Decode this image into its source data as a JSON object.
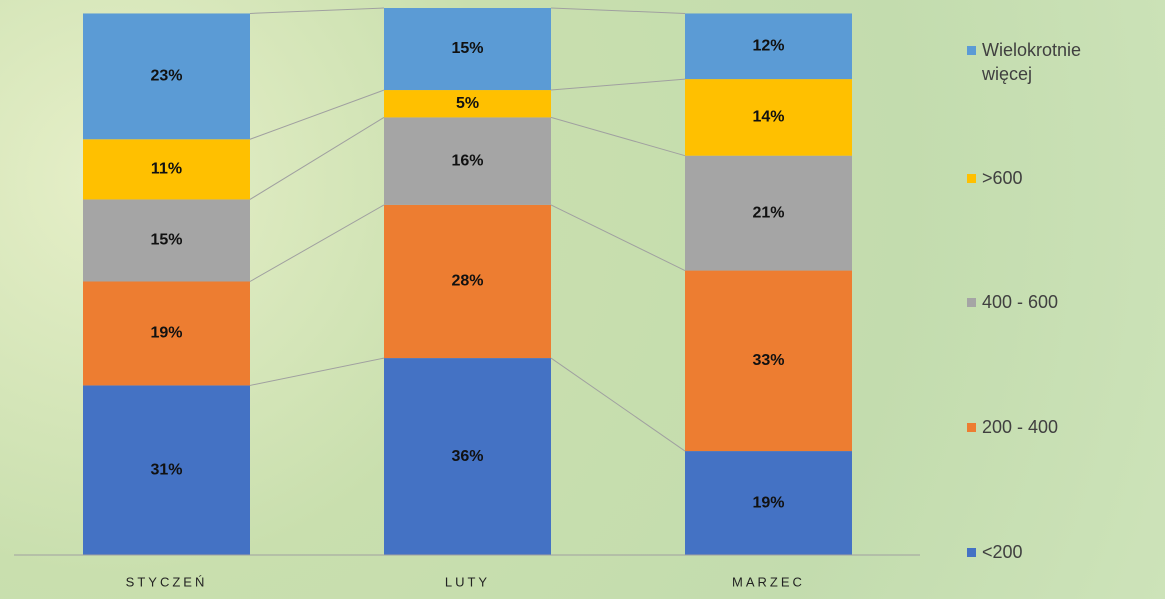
{
  "chart_data": {
    "type": "bar",
    "stacked": true,
    "categories": [
      "STYCZEŃ",
      "LUTY",
      "MARZEC"
    ],
    "series": [
      {
        "name": "<200",
        "color": "#4472c4",
        "values": [
          31,
          36,
          19
        ],
        "value_labels": [
          "31%",
          "36%",
          "19%"
        ]
      },
      {
        "name": "200 - 400",
        "color": "#ed7d31",
        "values": [
          19,
          28,
          33
        ],
        "value_labels": [
          "19%",
          "28%",
          "33%"
        ]
      },
      {
        "name": "400 - 600",
        "color": "#a5a5a5",
        "values": [
          15,
          16,
          21
        ],
        "value_labels": [
          "15%",
          "16%",
          "21%"
        ]
      },
      {
        "name": ">600",
        "color": "#ffc000",
        "values": [
          11,
          5,
          14
        ],
        "value_labels": [
          "11%",
          "5%",
          "14%"
        ]
      },
      {
        "name": "Wielokrotnie więcej",
        "color": "#5b9bd5",
        "values": [
          23,
          15,
          12
        ],
        "value_labels": [
          "23%",
          "15%",
          "12%"
        ]
      }
    ],
    "ylim": [
      0,
      100
    ],
    "legend": "right"
  }
}
